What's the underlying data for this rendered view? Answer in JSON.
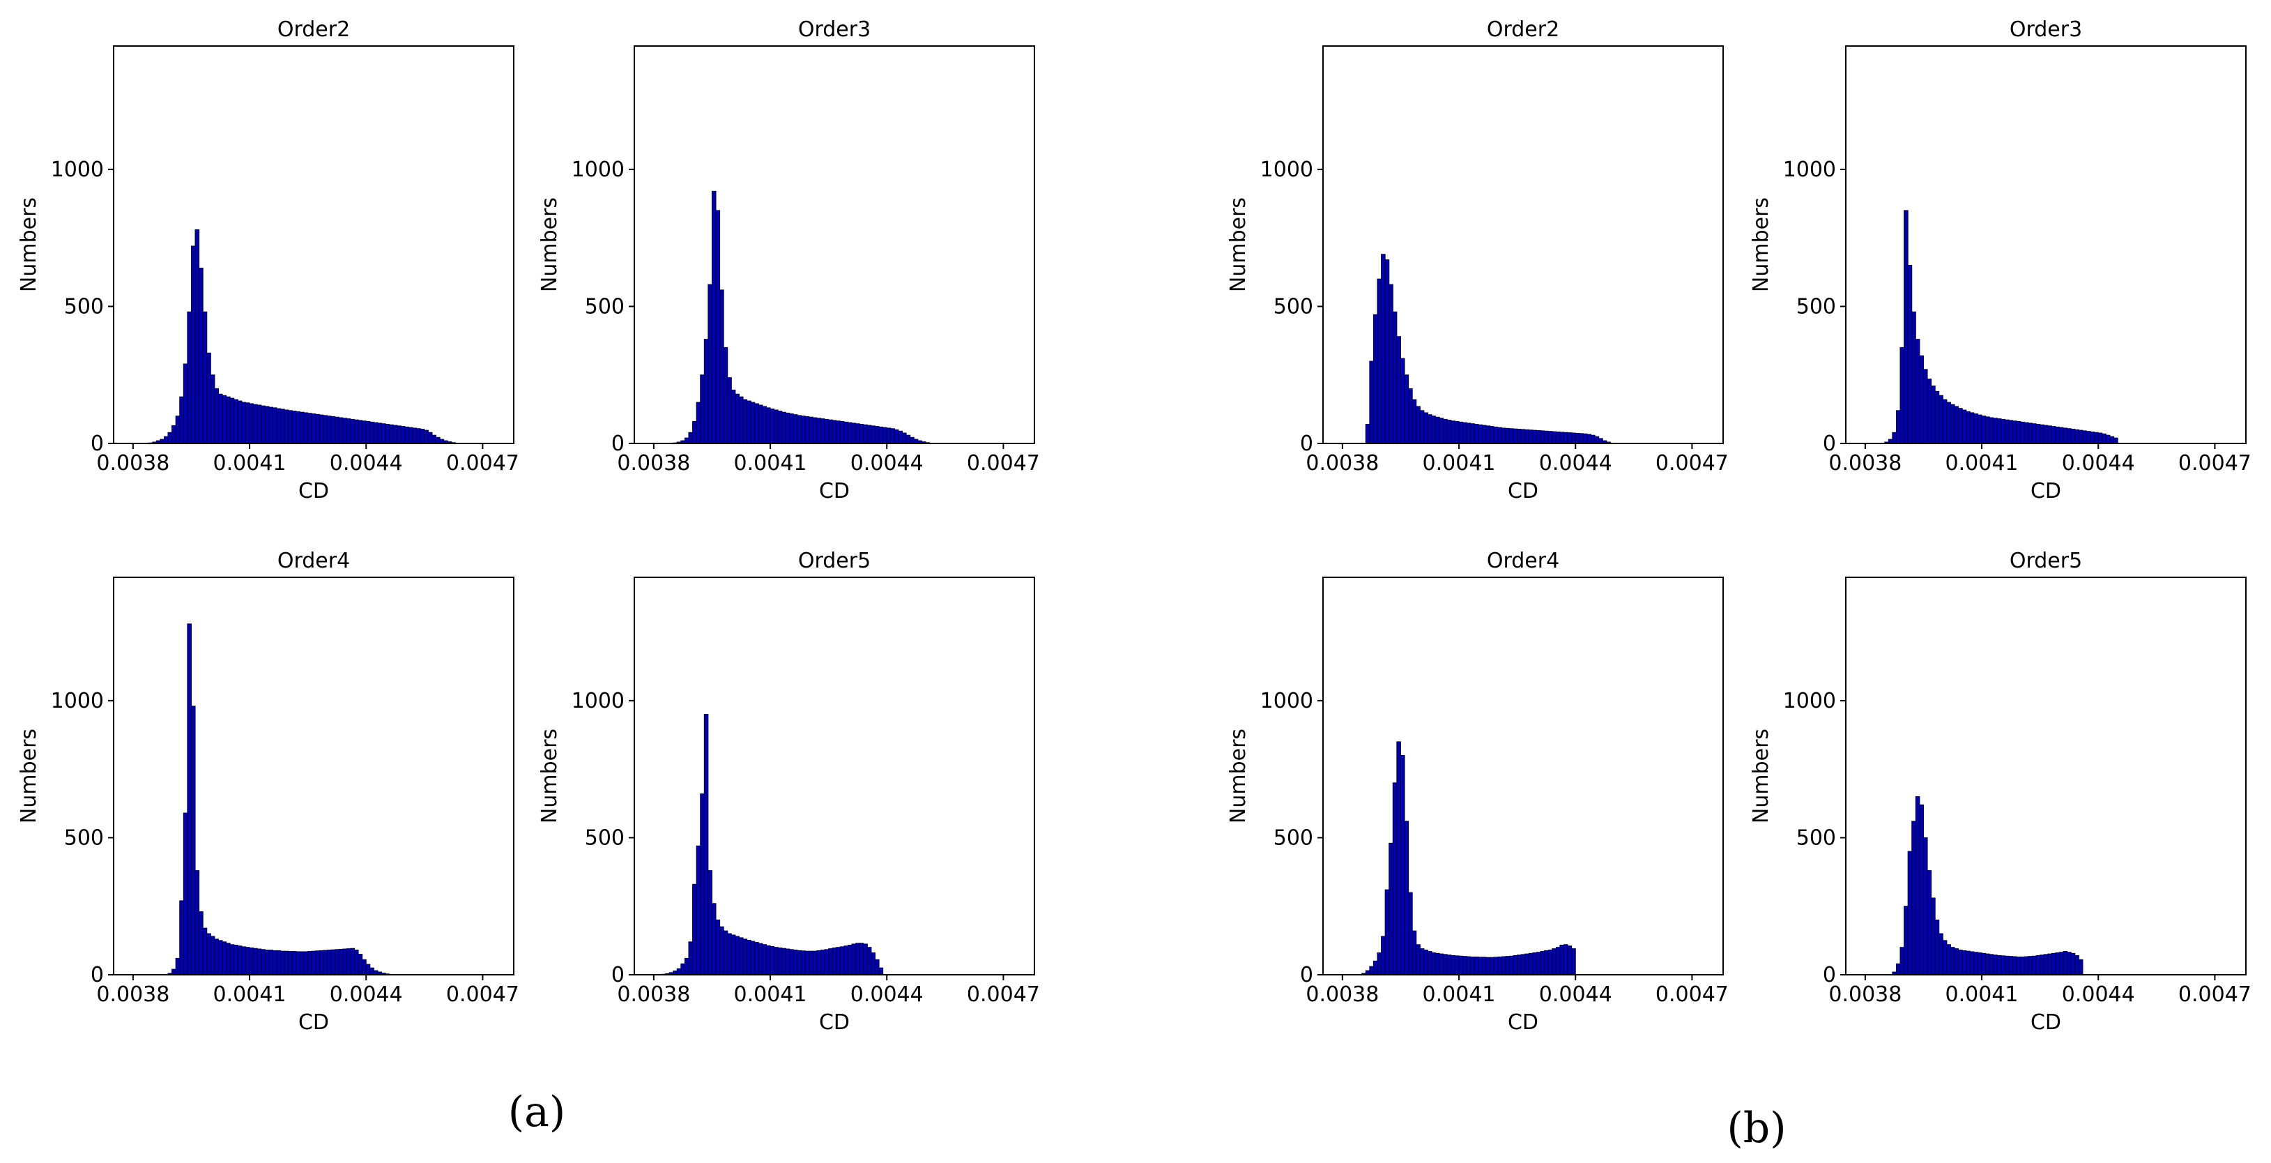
{
  "panel_labels": [
    "(a)",
    "(b)"
  ],
  "colors": {
    "bar_fill": "#0000b4",
    "bar_edge": "#00001e"
  },
  "chart_data": [
    {
      "panel": "(a)",
      "type": "histogram",
      "title": "Order2",
      "xlabel": "CD",
      "ylabel": "Numbers",
      "xlim": [
        0.00375,
        0.00478
      ],
      "ylim": [
        0,
        1450
      ],
      "xticks": [
        0.0038,
        0.0041,
        0.0044,
        0.0047
      ],
      "xtick_labels": [
        "0.0038",
        "0.0041",
        "0.0044",
        "0.0047"
      ],
      "yticks": [
        0,
        500,
        1000
      ],
      "ytick_labels": [
        "0",
        "500",
        "1000"
      ],
      "bin_start": 0.00384,
      "bin_width": 1e-05,
      "values": [
        2,
        5,
        10,
        15,
        25,
        40,
        65,
        100,
        170,
        290,
        480,
        720,
        780,
        640,
        480,
        330,
        250,
        200,
        180,
        175,
        170,
        165,
        160,
        155,
        150,
        148,
        145,
        142,
        140,
        137,
        135,
        132,
        130,
        127,
        125,
        122,
        120,
        118,
        116,
        114,
        112,
        110,
        108,
        106,
        104,
        102,
        100,
        98,
        96,
        94,
        92,
        90,
        88,
        86,
        84,
        82,
        80,
        78,
        76,
        74,
        72,
        70,
        68,
        66,
        64,
        62,
        60,
        58,
        56,
        54,
        52,
        48,
        40,
        30,
        22,
        15,
        10,
        6,
        3,
        1
      ]
    },
    {
      "panel": "(a)",
      "type": "histogram",
      "title": "Order3",
      "xlabel": "CD",
      "ylabel": "Numbers",
      "xlim": [
        0.00375,
        0.00478
      ],
      "ylim": [
        0,
        1450
      ],
      "xticks": [
        0.0038,
        0.0041,
        0.0044,
        0.0047
      ],
      "xtick_labels": [
        "0.0038",
        "0.0041",
        "0.0044",
        "0.0047"
      ],
      "yticks": [
        0,
        500,
        1000
      ],
      "ytick_labels": [
        "0",
        "500",
        "1000"
      ],
      "bin_start": 0.00385,
      "bin_width": 1e-05,
      "values": [
        2,
        5,
        10,
        20,
        40,
        80,
        150,
        250,
        380,
        580,
        920,
        850,
        560,
        350,
        240,
        195,
        180,
        170,
        160,
        155,
        150,
        145,
        140,
        135,
        130,
        126,
        122,
        118,
        114,
        111,
        108,
        105,
        102,
        100,
        98,
        96,
        94,
        92,
        90,
        88,
        86,
        84,
        82,
        80,
        78,
        76,
        74,
        72,
        70,
        68,
        66,
        64,
        62,
        60,
        58,
        56,
        54,
        50,
        45,
        38,
        30,
        22,
        15,
        10,
        6,
        3,
        1
      ]
    },
    {
      "panel": "(a)",
      "type": "histogram",
      "title": "Order4",
      "xlabel": "CD",
      "ylabel": "Numbers",
      "xlim": [
        0.00375,
        0.00478
      ],
      "ylim": [
        0,
        1450
      ],
      "xticks": [
        0.0038,
        0.0041,
        0.0044,
        0.0047
      ],
      "xtick_labels": [
        "0.0038",
        "0.0041",
        "0.0044",
        "0.0047"
      ],
      "yticks": [
        0,
        500,
        1000
      ],
      "ytick_labels": [
        "0",
        "500",
        "1000"
      ],
      "bin_start": 0.00389,
      "bin_width": 1e-05,
      "values": [
        5,
        20,
        60,
        270,
        590,
        1280,
        980,
        380,
        230,
        170,
        150,
        140,
        130,
        125,
        120,
        115,
        110,
        108,
        105,
        102,
        100,
        98,
        96,
        94,
        92,
        90,
        90,
        88,
        88,
        86,
        86,
        85,
        85,
        84,
        84,
        84,
        85,
        86,
        87,
        88,
        89,
        90,
        91,
        92,
        93,
        94,
        95,
        96,
        90,
        75,
        55,
        38,
        25,
        15,
        10,
        6,
        3,
        1
      ]
    },
    {
      "panel": "(a)",
      "type": "histogram",
      "title": "Order5",
      "xlabel": "CD",
      "ylabel": "Numbers",
      "xlim": [
        0.00375,
        0.00478
      ],
      "ylim": [
        0,
        1450
      ],
      "xticks": [
        0.0038,
        0.0041,
        0.0044,
        0.0047
      ],
      "xtick_labels": [
        "0.0038",
        "0.0041",
        "0.0044",
        "0.0047"
      ],
      "yticks": [
        0,
        500,
        1000
      ],
      "ytick_labels": [
        "0",
        "500",
        "1000"
      ],
      "bin_start": 0.00382,
      "bin_width": 1e-05,
      "values": [
        2,
        4,
        8,
        14,
        22,
        40,
        60,
        120,
        330,
        470,
        660,
        950,
        380,
        260,
        200,
        175,
        160,
        150,
        145,
        140,
        135,
        130,
        126,
        122,
        118,
        114,
        110,
        106,
        103,
        100,
        98,
        96,
        94,
        92,
        90,
        88,
        87,
        86,
        86,
        86,
        88,
        90,
        92,
        95,
        98,
        100,
        102,
        105,
        108,
        112,
        115,
        115,
        112,
        100,
        80,
        55,
        25
      ]
    },
    {
      "panel": "(b)",
      "type": "histogram",
      "title": "Order2",
      "xlabel": "CD",
      "ylabel": "Numbers",
      "xlim": [
        0.00375,
        0.00478
      ],
      "ylim": [
        0,
        1450
      ],
      "xticks": [
        0.0038,
        0.0041,
        0.0044,
        0.0047
      ],
      "xtick_labels": [
        "0.0038",
        "0.0041",
        "0.0044",
        "0.0047"
      ],
      "yticks": [
        0,
        500,
        1000
      ],
      "ytick_labels": [
        "0",
        "500",
        "1000"
      ],
      "bin_start": 0.00386,
      "bin_width": 1e-05,
      "values": [
        70,
        300,
        470,
        600,
        690,
        670,
        580,
        480,
        390,
        310,
        250,
        200,
        160,
        135,
        120,
        112,
        105,
        100,
        96,
        92,
        88,
        85,
        82,
        80,
        78,
        76,
        74,
        72,
        70,
        68,
        66,
        64,
        62,
        60,
        58,
        56,
        55,
        54,
        53,
        52,
        51,
        50,
        49,
        48,
        47,
        46,
        45,
        44,
        43,
        42,
        41,
        40,
        39,
        38,
        37,
        36,
        35,
        33,
        30,
        25,
        18,
        10,
        5
      ]
    },
    {
      "panel": "(b)",
      "type": "histogram",
      "title": "Order3",
      "xlabel": "CD",
      "ylabel": "Numbers",
      "xlim": [
        0.00375,
        0.00478
      ],
      "ylim": [
        0,
        1450
      ],
      "xticks": [
        0.0038,
        0.0041,
        0.0044,
        0.0047
      ],
      "xtick_labels": [
        "0.0038",
        "0.0041",
        "0.0044",
        "0.0047"
      ],
      "yticks": [
        0,
        500,
        1000
      ],
      "ytick_labels": [
        "0",
        "500",
        "1000"
      ],
      "bin_start": 0.00385,
      "bin_width": 1e-05,
      "values": [
        5,
        15,
        40,
        120,
        350,
        850,
        650,
        480,
        380,
        320,
        270,
        235,
        210,
        190,
        175,
        160,
        150,
        142,
        135,
        128,
        122,
        116,
        112,
        108,
        104,
        100,
        97,
        94,
        92,
        90,
        88,
        86,
        84,
        82,
        80,
        78,
        76,
        74,
        72,
        70,
        68,
        66,
        64,
        62,
        60,
        58,
        56,
        54,
        52,
        50,
        48,
        46,
        44,
        42,
        40,
        38,
        35,
        30,
        25,
        20
      ]
    },
    {
      "panel": "(b)",
      "type": "histogram",
      "title": "Order4",
      "xlabel": "CD",
      "ylabel": "Numbers",
      "xlim": [
        0.00375,
        0.00478
      ],
      "ylim": [
        0,
        1450
      ],
      "xticks": [
        0.0038,
        0.0041,
        0.0044,
        0.0047
      ],
      "xtick_labels": [
        "0.0038",
        "0.0041",
        "0.0044",
        "0.0047"
      ],
      "yticks": [
        0,
        500,
        1000
      ],
      "ytick_labels": [
        "0",
        "500",
        "1000"
      ],
      "bin_start": 0.00385,
      "bin_width": 1e-05,
      "values": [
        5,
        15,
        30,
        50,
        80,
        140,
        310,
        480,
        700,
        850,
        800,
        560,
        300,
        160,
        110,
        95,
        90,
        85,
        80,
        78,
        76,
        74,
        72,
        70,
        69,
        68,
        67,
        66,
        65,
        65,
        64,
        64,
        63,
        63,
        64,
        65,
        66,
        67,
        68,
        70,
        72,
        74,
        76,
        78,
        80,
        82,
        85,
        88,
        90,
        95,
        100,
        108,
        110,
        105,
        95
      ]
    },
    {
      "panel": "(b)",
      "type": "histogram",
      "title": "Order5",
      "xlabel": "CD",
      "ylabel": "Numbers",
      "xlim": [
        0.00375,
        0.00478
      ],
      "ylim": [
        0,
        1450
      ],
      "xticks": [
        0.0038,
        0.0041,
        0.0044,
        0.0047
      ],
      "xtick_labels": [
        "0.0038",
        "0.0041",
        "0.0044",
        "0.0047"
      ],
      "yticks": [
        0,
        500,
        1000
      ],
      "ytick_labels": [
        "0",
        "500",
        "1000"
      ],
      "bin_start": 0.00387,
      "bin_width": 1e-05,
      "values": [
        10,
        40,
        100,
        250,
        450,
        560,
        650,
        620,
        500,
        380,
        280,
        200,
        150,
        125,
        110,
        100,
        95,
        90,
        88,
        86,
        84,
        82,
        80,
        78,
        76,
        74,
        72,
        70,
        69,
        68,
        67,
        66,
        65,
        65,
        66,
        67,
        68,
        70,
        72,
        74,
        76,
        78,
        80,
        82,
        85,
        82,
        78,
        70,
        55
      ]
    }
  ]
}
